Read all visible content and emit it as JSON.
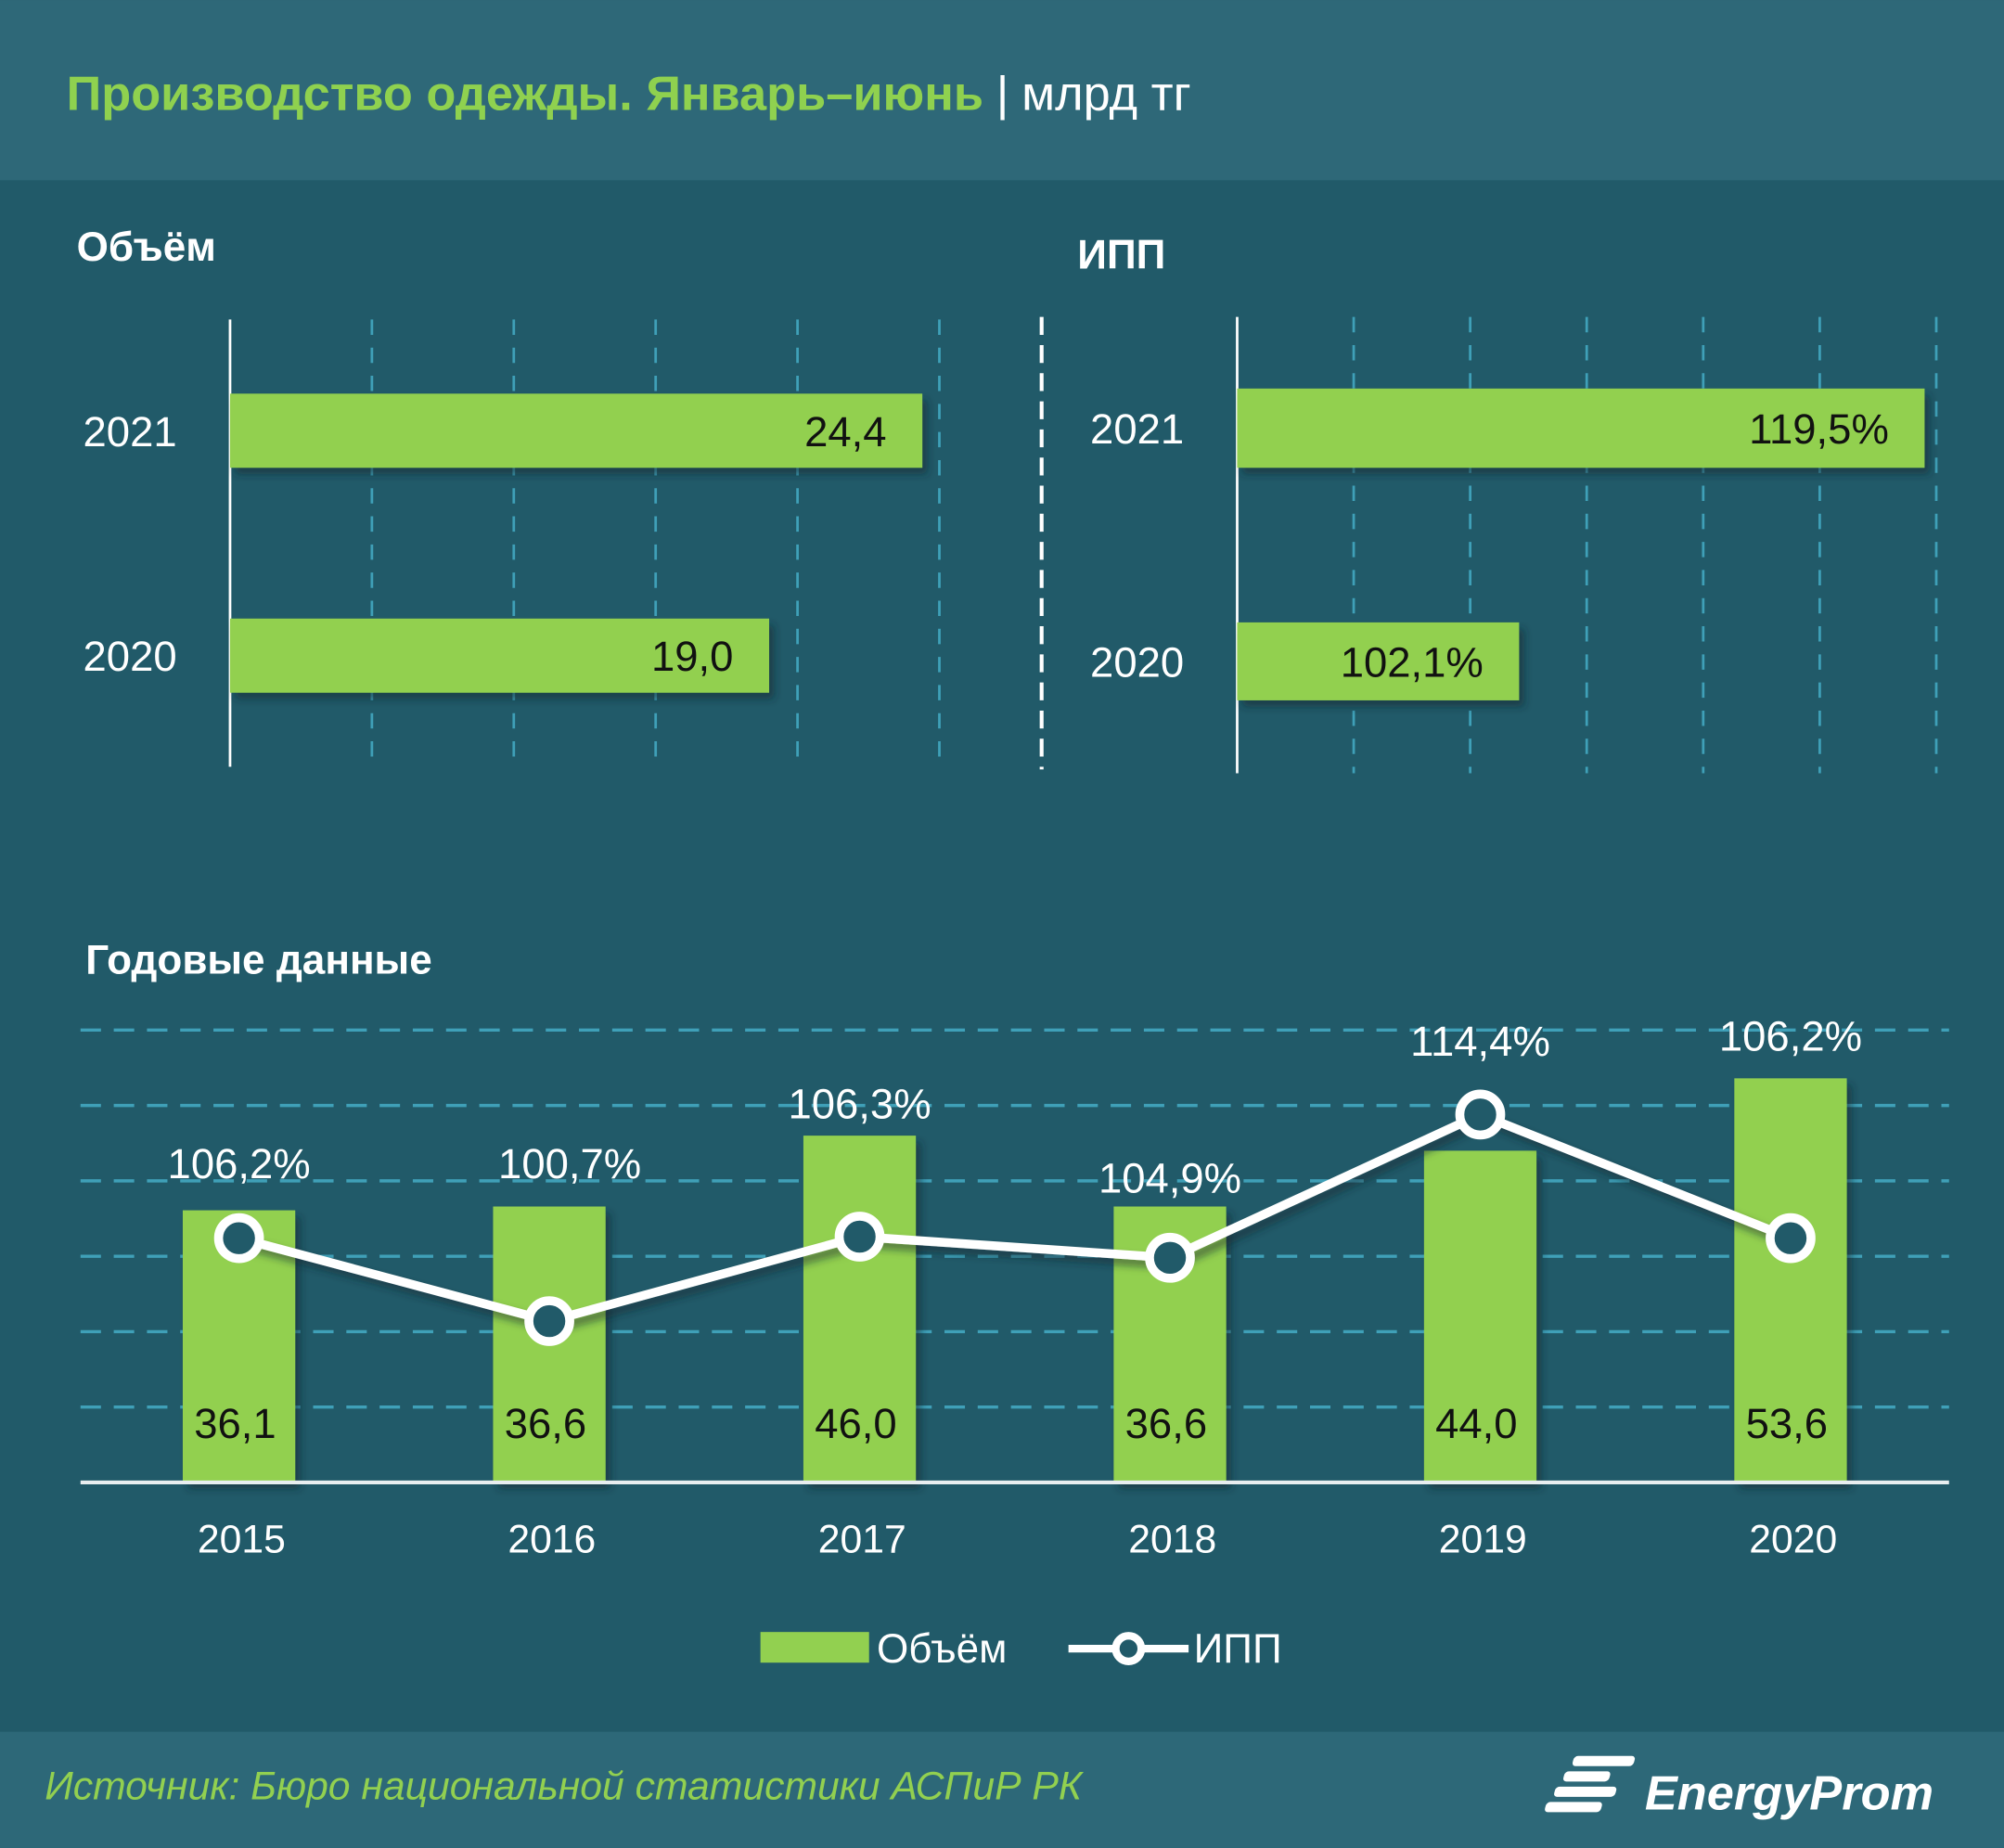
{
  "header": {
    "title": "Производство одежды. Январь–июнь",
    "separator": "|",
    "unit": "млрд тг"
  },
  "colors": {
    "header_bg": "#2e6878",
    "body_bg": "#215a69",
    "accent_green": "#92d050",
    "title_green": "#8fd14f",
    "grid": "#3fa0b8",
    "text": "#ffffff"
  },
  "chart_data": [
    {
      "type": "bar",
      "orientation": "horizontal",
      "title": "Объём",
      "categories": [
        "2021",
        "2020"
      ],
      "values": [
        24.4,
        19.0
      ],
      "labels": [
        "24,4",
        "19,0"
      ],
      "xlim": [
        0,
        25
      ],
      "grid": true
    },
    {
      "type": "bar",
      "orientation": "horizontal",
      "title": "ИПП",
      "categories": [
        "2021",
        "2020"
      ],
      "values": [
        119.5,
        102.1
      ],
      "labels": [
        "119,5%",
        "102,1%"
      ],
      "xlim": [
        90,
        120
      ],
      "grid": true
    },
    {
      "type": "bar+line",
      "title": "Годовые данные",
      "categories": [
        "2015",
        "2016",
        "2017",
        "2018",
        "2019",
        "2020"
      ],
      "series": [
        {
          "name": "Объём",
          "type": "bar",
          "axis": "left",
          "values": [
            36.1,
            36.6,
            46.0,
            36.6,
            44.0,
            53.6
          ],
          "labels": [
            "36,1",
            "36,6",
            "46,0",
            "36,6",
            "44,0",
            "53,6"
          ]
        },
        {
          "name": "ИПП",
          "type": "line",
          "axis": "right",
          "values": [
            106.2,
            100.7,
            106.3,
            104.9,
            114.4,
            106.2
          ],
          "labels": [
            "106,2%",
            "100,7%",
            "106,3%",
            "104,9%",
            "114,4%",
            "106,2%"
          ]
        }
      ],
      "ylim_left": [
        0,
        60
      ],
      "ylim_right": [
        90,
        120
      ],
      "grid": true,
      "legend": "bottom"
    }
  ],
  "footer": {
    "source": "Источник: Бюро национальной  статистики АСПиР РК",
    "logo": "EnergyProm"
  }
}
